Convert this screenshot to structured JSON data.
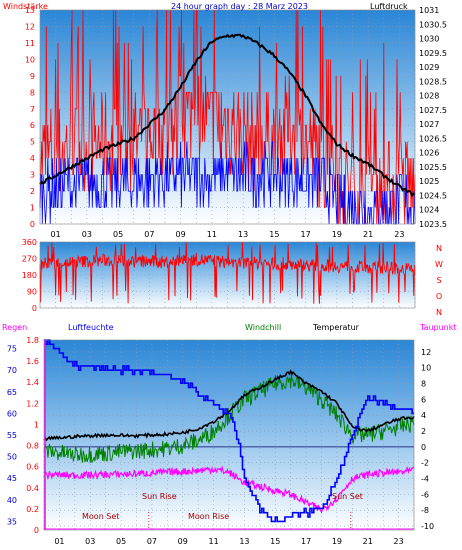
{
  "colors": {
    "windspeed": "#ff0000",
    "gust": "#0000ff",
    "pressure": "#000000",
    "direction": "#ff0000",
    "humidity": "#0000ff",
    "windchill": "#008000",
    "temperature": "#000000",
    "dewpoint": "#ff00ff",
    "rain": "#ff00ff",
    "grid": "#8899bb",
    "panel_top": "#2f8ad8",
    "panel_bottom": "#ffffff"
  },
  "chart_data": [
    {
      "type": "line",
      "title": "24 hour graph day : 28 Marz 2023",
      "left_axis_title": "Windstärke",
      "right_axis_title": "Luftdruck",
      "x_ticks": [
        "01",
        "03",
        "05",
        "07",
        "09",
        "11",
        "13",
        "15",
        "17",
        "19",
        "21",
        "23"
      ],
      "y_left_ticks": [
        "0",
        "1",
        "2",
        "3",
        "4",
        "5",
        "6",
        "7",
        "8",
        "9",
        "10",
        "11",
        "12",
        "13"
      ],
      "y_left_range": [
        0,
        13
      ],
      "y_right_ticks": [
        "1023.5",
        "1024",
        "1024.5",
        "1025",
        "1025.5",
        "1026",
        "1026.5",
        "1027",
        "1027.5",
        "1028",
        "1028.5",
        "1029",
        "1029.5",
        "1030",
        "1030.5",
        "1031"
      ],
      "y_right_range": [
        1023.5,
        1031
      ],
      "series": [
        {
          "name": "Luftdruck",
          "axis": "right",
          "x": [
            0,
            2,
            4,
            6,
            8,
            9,
            10,
            11,
            12,
            13,
            14,
            15,
            16,
            17,
            18,
            19,
            20,
            21,
            22,
            23,
            24
          ],
          "y": [
            1024.9,
            1025.5,
            1026.1,
            1026.5,
            1027.5,
            1028.3,
            1029.2,
            1029.9,
            1030.1,
            1030.1,
            1029.8,
            1029.4,
            1028.8,
            1028.0,
            1027.0,
            1026.3,
            1025.9,
            1025.6,
            1025.2,
            1024.8,
            1024.5
          ]
        },
        {
          "name": "Windstärke",
          "axis": "left",
          "x": [
            0,
            3,
            6,
            9,
            10,
            11,
            12,
            14,
            16,
            17,
            18,
            19,
            20,
            21,
            22,
            23,
            24
          ],
          "y": [
            4,
            5,
            5,
            6,
            7,
            6,
            6,
            5,
            6,
            5,
            4,
            3,
            2,
            2,
            2,
            3,
            2
          ]
        },
        {
          "name": "Böen",
          "axis": "left",
          "x": [
            0,
            3,
            6,
            9,
            12,
            15,
            18,
            19,
            20,
            21,
            22,
            23,
            24
          ],
          "y": [
            2,
            2.5,
            2.5,
            3,
            3,
            3,
            2.5,
            1.5,
            1,
            1,
            1,
            1.5,
            1
          ]
        }
      ]
    },
    {
      "type": "line",
      "right_axis_labels": [
        "N",
        "W",
        "S",
        "O",
        "N"
      ],
      "y_left_ticks": [
        "0",
        "90",
        "180",
        "270",
        "360"
      ],
      "y_range": [
        0,
        360
      ],
      "series": [
        {
          "name": "Windrichtung",
          "x": [
            0,
            2,
            4,
            6,
            8,
            10,
            12,
            14,
            16,
            18,
            20,
            22,
            24
          ],
          "y": [
            240,
            250,
            260,
            255,
            250,
            265,
            250,
            245,
            240,
            230,
            225,
            220,
            210
          ]
        }
      ]
    },
    {
      "type": "line",
      "legend": [
        "Regen",
        "Luftfeuchte",
        "Windchill",
        "Temperatur",
        "Taupunkt"
      ],
      "y_left1_ticks": [
        "0",
        "0.2",
        "0.4",
        "0.6",
        "0.8",
        "1",
        "1.2",
        "1.4",
        "1.6",
        "1.8"
      ],
      "y_left1_range": [
        0,
        1.8
      ],
      "y_left2_ticks": [
        "35",
        "40",
        "45",
        "50",
        "55",
        "60",
        "65",
        "70",
        "75"
      ],
      "y_left2_range": [
        33,
        77
      ],
      "y_right_ticks": [
        "-10",
        "-8",
        "-6",
        "-4",
        "-2",
        "0",
        "2",
        "4",
        "6",
        "8",
        "10",
        "12"
      ],
      "y_right_range": [
        -10.5,
        13.5
      ],
      "x_ticks": [
        "01",
        "03",
        "05",
        "07",
        "09",
        "11",
        "13",
        "15",
        "17",
        "19",
        "21",
        "23"
      ],
      "annotations": [
        "Moon Set",
        "Sun Rise",
        "Moon Rise",
        "Sun Set"
      ],
      "series": [
        {
          "name": "Luftfeuchte",
          "axis": "left2",
          "x": [
            0,
            1,
            2,
            4,
            6,
            8,
            9,
            10,
            11,
            12,
            12.5,
            13,
            14,
            15,
            16,
            17,
            18,
            19,
            20,
            21,
            22,
            23,
            24
          ],
          "y": [
            77,
            74,
            71,
            70,
            70,
            69,
            67,
            65,
            62,
            60,
            55,
            45,
            38,
            35,
            36,
            37,
            38,
            45,
            55,
            64,
            62,
            61,
            60
          ]
        },
        {
          "name": "Temperatur",
          "axis": "right",
          "x": [
            0,
            2,
            4,
            6,
            8,
            9,
            10,
            11,
            12,
            13,
            14,
            15,
            16,
            17,
            18,
            19,
            20,
            21,
            22,
            23,
            24
          ],
          "y": [
            1.0,
            1.3,
            1.5,
            1.4,
            1.6,
            1.8,
            2.3,
            3.2,
            4.5,
            6.5,
            7.5,
            8.5,
            9.5,
            8.0,
            7.0,
            5.5,
            2.5,
            2.0,
            2.8,
            3.5,
            3.8
          ]
        },
        {
          "name": "Windchill",
          "axis": "right",
          "x": [
            0,
            2,
            4,
            6,
            8,
            9,
            10,
            11,
            12,
            13,
            14,
            15,
            16,
            17,
            18,
            19,
            20,
            21,
            22,
            23,
            24
          ],
          "y": [
            -0.5,
            -1.0,
            -0.8,
            -0.5,
            -0.2,
            0.2,
            0.8,
            2.0,
            4.0,
            6.0,
            7.0,
            8.0,
            8.5,
            7.5,
            6.0,
            4.0,
            1.5,
            1.5,
            2.0,
            2.5,
            3.0
          ]
        },
        {
          "name": "Taupunkt",
          "axis": "right",
          "x": [
            0,
            2,
            4,
            6,
            8,
            10,
            11,
            12,
            13,
            14,
            15,
            16,
            17,
            18,
            19,
            20,
            21,
            22,
            23,
            24
          ],
          "y": [
            -3.5,
            -3.6,
            -3.5,
            -3.4,
            -3.2,
            -3.0,
            -2.8,
            -3.2,
            -4.5,
            -5.0,
            -5.5,
            -6.0,
            -7.0,
            -8.0,
            -6.5,
            -4.0,
            -3.5,
            -3.3,
            -3.2,
            -3.0
          ]
        },
        {
          "name": "Regen",
          "axis": "left1",
          "x": [
            0,
            24
          ],
          "y": [
            0,
            0
          ]
        }
      ]
    }
  ]
}
